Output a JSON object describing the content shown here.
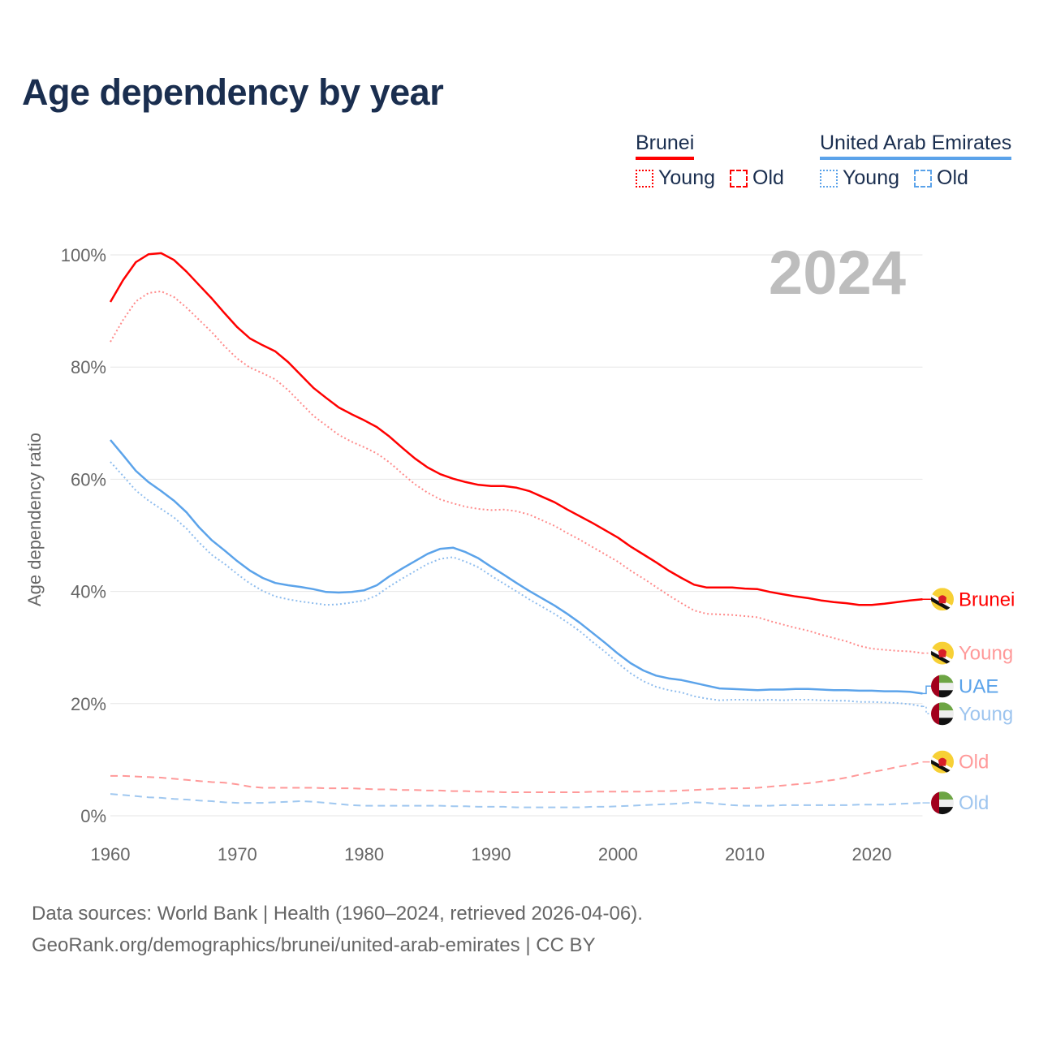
{
  "chart_data": {
    "type": "line",
    "title": "Age dependency by year",
    "ylabel": "Age dependency ratio",
    "xlabel": "",
    "year_watermark": "2024",
    "xlim": [
      1960,
      2024
    ],
    "ylim": [
      0,
      100
    ],
    "x_ticks": [
      1960,
      1970,
      1980,
      1990,
      2000,
      2010,
      2020
    ],
    "y_ticks": [
      0,
      20,
      40,
      60,
      80,
      100
    ],
    "y_tick_labels": [
      "0%",
      "20%",
      "40%",
      "60%",
      "80%",
      "100%"
    ],
    "grid": true,
    "legend_placement": "top-right",
    "legend": {
      "groups": [
        {
          "country": "Brunei",
          "color": "#ff0000",
          "items": [
            "Young",
            "Old"
          ]
        },
        {
          "country": "United Arab Emirates",
          "color": "#5ba3ea",
          "items": [
            "Young",
            "Old"
          ]
        }
      ]
    },
    "x_start": 1960,
    "series": [
      {
        "name": "Brunei",
        "end_label": "Brunei",
        "flag": "brunei",
        "color": "#ff0000",
        "style": "solid",
        "values": [
          91.6,
          95.5,
          98.7,
          100.1,
          100.3,
          99.1,
          97.0,
          94.6,
          92.2,
          89.6,
          87.1,
          85.1,
          83.9,
          82.8,
          80.9,
          78.6,
          76.3,
          74.5,
          72.8,
          71.6,
          70.5,
          69.3,
          67.6,
          65.6,
          63.7,
          62.1,
          60.9,
          60.1,
          59.5,
          59.0,
          58.8,
          58.8,
          58.5,
          57.9,
          56.9,
          55.9,
          54.6,
          53.4,
          52.2,
          50.9,
          49.6,
          48.0,
          46.6,
          45.2,
          43.7,
          42.4,
          41.2,
          40.7,
          40.7,
          40.7,
          40.5,
          40.4,
          39.9,
          39.5,
          39.1,
          38.8,
          38.4,
          38.1,
          37.9,
          37.6,
          37.6,
          37.8,
          38.1,
          38.4,
          38.6
        ]
      },
      {
        "name": "Brunei Young",
        "end_label": "Young",
        "flag": "brunei",
        "color": "#ff8a8a",
        "label_color": "#ff9a9a",
        "style": "dotted",
        "values": [
          84.5,
          88.4,
          91.7,
          93.2,
          93.5,
          92.5,
          90.6,
          88.4,
          86.2,
          83.7,
          81.5,
          79.9,
          78.9,
          77.8,
          75.9,
          73.6,
          71.3,
          69.6,
          67.9,
          66.7,
          65.7,
          64.6,
          63.0,
          61.0,
          59.1,
          57.6,
          56.4,
          55.7,
          55.1,
          54.7,
          54.5,
          54.6,
          54.3,
          53.7,
          52.7,
          51.7,
          50.4,
          49.2,
          47.9,
          46.6,
          45.3,
          43.7,
          42.3,
          40.8,
          39.3,
          37.9,
          36.6,
          36.0,
          35.9,
          35.8,
          35.6,
          35.4,
          34.7,
          34.1,
          33.5,
          33.0,
          32.3,
          31.7,
          31.1,
          30.3,
          29.8,
          29.6,
          29.4,
          29.3,
          29.0
        ]
      },
      {
        "name": "Brunei Old",
        "end_label": "Old",
        "flag": "brunei",
        "color": "#ff9999",
        "label_color": "#ff9a9a",
        "style": "dashed",
        "values": [
          7.1,
          7.1,
          7.0,
          6.9,
          6.8,
          6.6,
          6.4,
          6.2,
          6.0,
          5.9,
          5.6,
          5.2,
          5.0,
          5.0,
          5.0,
          5.0,
          5.0,
          4.9,
          4.9,
          4.9,
          4.8,
          4.7,
          4.7,
          4.6,
          4.6,
          4.5,
          4.5,
          4.4,
          4.4,
          4.3,
          4.3,
          4.2,
          4.2,
          4.2,
          4.2,
          4.2,
          4.2,
          4.2,
          4.3,
          4.3,
          4.3,
          4.3,
          4.3,
          4.4,
          4.4,
          4.5,
          4.6,
          4.7,
          4.8,
          4.9,
          4.9,
          5.0,
          5.2,
          5.4,
          5.6,
          5.8,
          6.1,
          6.4,
          6.8,
          7.3,
          7.8,
          8.2,
          8.7,
          9.1,
          9.6
        ]
      },
      {
        "name": "United Arab Emirates",
        "end_label": "UAE",
        "flag": "uae",
        "color": "#5ba3ea",
        "style": "solid",
        "values": [
          67.0,
          64.3,
          61.5,
          59.5,
          57.9,
          56.2,
          54.1,
          51.4,
          49.1,
          47.3,
          45.4,
          43.7,
          42.4,
          41.5,
          41.1,
          40.8,
          40.4,
          39.9,
          39.8,
          39.9,
          40.2,
          41.1,
          42.7,
          44.1,
          45.4,
          46.7,
          47.6,
          47.8,
          47.0,
          45.9,
          44.4,
          43.0,
          41.5,
          40.1,
          38.8,
          37.5,
          36.0,
          34.4,
          32.6,
          30.8,
          28.9,
          27.2,
          25.9,
          25.0,
          24.5,
          24.2,
          23.7,
          23.2,
          22.7,
          22.6,
          22.5,
          22.4,
          22.5,
          22.5,
          22.6,
          22.6,
          22.5,
          22.4,
          22.4,
          22.3,
          22.3,
          22.2,
          22.2,
          22.1,
          21.8
        ]
      },
      {
        "name": "United Arab Emirates Young",
        "end_label": "Young",
        "flag": "uae",
        "color": "#8fbdee",
        "label_color": "#9ec5ef",
        "style": "dotted",
        "values": [
          63.1,
          60.6,
          58.0,
          56.2,
          54.7,
          53.2,
          51.2,
          48.7,
          46.5,
          44.9,
          43.1,
          41.4,
          40.1,
          39.1,
          38.6,
          38.2,
          37.9,
          37.6,
          37.7,
          38.0,
          38.4,
          39.3,
          40.9,
          42.3,
          43.6,
          44.9,
          45.8,
          46.1,
          45.3,
          44.3,
          42.8,
          41.4,
          40.0,
          38.6,
          37.3,
          36.0,
          34.5,
          32.9,
          31.0,
          29.2,
          27.2,
          25.4,
          24.0,
          23.0,
          22.4,
          22.0,
          21.3,
          20.9,
          20.6,
          20.7,
          20.7,
          20.6,
          20.7,
          20.6,
          20.7,
          20.7,
          20.6,
          20.5,
          20.5,
          20.3,
          20.3,
          20.2,
          20.1,
          19.9,
          19.5
        ]
      },
      {
        "name": "United Arab Emirates Old",
        "end_label": "Old",
        "flag": "uae",
        "color": "#a0c8f0",
        "label_color": "#9ec5ef",
        "style": "dashed",
        "values": [
          3.9,
          3.7,
          3.5,
          3.3,
          3.2,
          3.0,
          2.9,
          2.7,
          2.6,
          2.4,
          2.3,
          2.3,
          2.3,
          2.4,
          2.5,
          2.6,
          2.5,
          2.3,
          2.1,
          1.9,
          1.8,
          1.8,
          1.8,
          1.8,
          1.8,
          1.8,
          1.8,
          1.7,
          1.7,
          1.6,
          1.6,
          1.6,
          1.5,
          1.5,
          1.5,
          1.5,
          1.5,
          1.5,
          1.6,
          1.6,
          1.7,
          1.8,
          1.9,
          2.0,
          2.1,
          2.2,
          2.4,
          2.3,
          2.1,
          1.9,
          1.8,
          1.8,
          1.8,
          1.9,
          1.9,
          1.9,
          1.9,
          1.9,
          1.9,
          2.0,
          2.0,
          2.0,
          2.1,
          2.2,
          2.3
        ]
      }
    ]
  },
  "footer": {
    "line1": "Data sources: World Bank | Health (1960–2024, retrieved 2026-04-06).",
    "line2": "GeoRank.org/demographics/brunei/united-arab-emirates | CC BY"
  }
}
